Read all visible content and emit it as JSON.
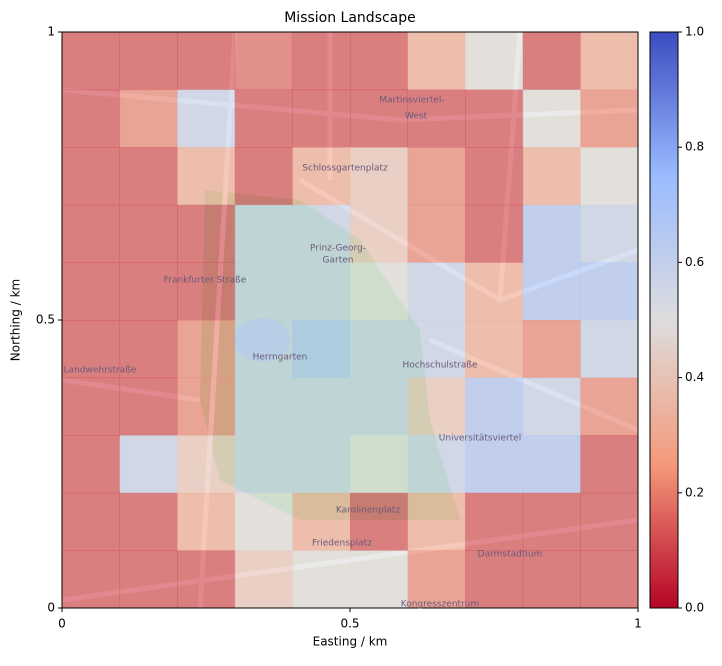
{
  "chart_data": {
    "type": "heatmap",
    "title": "Mission Landscape",
    "x_label": "Easting / km",
    "y_label": "Northing / km",
    "xlim": [
      0,
      1
    ],
    "ylim": [
      0,
      1
    ],
    "xticks": [
      0,
      0.5,
      1
    ],
    "yticks": [
      0,
      0.5,
      1
    ],
    "x": [
      0.05,
      0.15,
      0.25,
      0.35,
      0.45,
      0.55,
      0.65,
      0.75,
      0.85,
      0.95
    ],
    "y": [
      0.95,
      0.85,
      0.75,
      0.65,
      0.55,
      0.45,
      0.35,
      0.25,
      0.15,
      0.05
    ],
    "z": [
      [
        0.1,
        0.1,
        0.1,
        0.15,
        0.1,
        0.1,
        0.3,
        0.5,
        0.1,
        0.3
      ],
      [
        0.1,
        0.2,
        0.6,
        0.1,
        0.1,
        0.1,
        0.1,
        0.1,
        0.5,
        0.2
      ],
      [
        0.1,
        0.1,
        0.3,
        0.1,
        0.3,
        0.4,
        0.2,
        0.1,
        0.3,
        0.5
      ],
      [
        0.1,
        0.1,
        0.1,
        0.6,
        0.6,
        0.4,
        0.2,
        0.1,
        0.7,
        0.6
      ],
      [
        0.1,
        0.1,
        0.1,
        0.6,
        0.6,
        0.5,
        0.6,
        0.3,
        0.7,
        0.7
      ],
      [
        0.1,
        0.1,
        0.2,
        0.6,
        0.7,
        0.6,
        0.6,
        0.3,
        0.2,
        0.6
      ],
      [
        0.1,
        0.1,
        0.2,
        0.6,
        0.6,
        0.6,
        0.4,
        0.7,
        0.6,
        0.2
      ],
      [
        0.1,
        0.6,
        0.4,
        0.6,
        0.6,
        0.5,
        0.6,
        0.7,
        0.7,
        0.1
      ],
      [
        0.1,
        0.1,
        0.3,
        0.5,
        0.3,
        0.1,
        0.3,
        0.1,
        0.1,
        0.1
      ],
      [
        0.1,
        0.1,
        0.1,
        0.4,
        0.5,
        0.5,
        0.2,
        0.1,
        0.1,
        0.1
      ]
    ],
    "colormap": "coolwarm_r",
    "clim": [
      0,
      1
    ],
    "cticks": [
      {
        "value": 0,
        "label": "0.0"
      },
      0.2,
      0.4,
      0.6,
      0.8,
      {
        "value": 1,
        "label": "1.0"
      }
    ],
    "map_labels": [
      "Herrngarten",
      "Martinsviertel-",
      "West",
      "Universitätsviertel",
      "Prinz-Georg-",
      "Garten",
      "Karolinenplatz",
      "Friedensplatz",
      "Darmstadtium",
      "Frankfurter Straße",
      "Landwehrstraße",
      "Hochschulstraße",
      "Schlossgartenplatz",
      "Kongresszentrum"
    ]
  }
}
